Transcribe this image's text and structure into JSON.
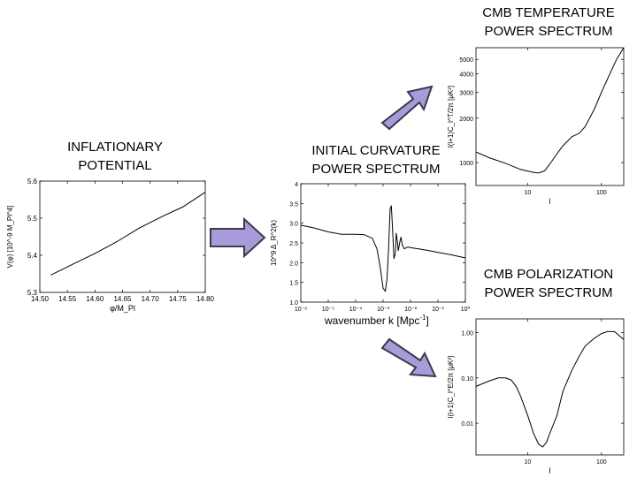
{
  "headings": {
    "inflation": [
      "INFLATIONARY",
      "POTENTIAL"
    ],
    "curvature": [
      "INITIAL CURVATURE",
      "POWER SPECTRUM"
    ],
    "temperature": [
      "CMB TEMPERATURE",
      "POWER SPECTRUM"
    ],
    "polarization": [
      "CMB POLARIZATION",
      "POWER SPECTRUM"
    ]
  },
  "arrow_color": "#a99ad9",
  "chart_data": [
    {
      "type": "line",
      "title": "INFLATIONARY POTENTIAL",
      "xlabel": "φ/M_Pl",
      "ylabel": "V(φ) [10^-9 M_Pl^4]",
      "xlim": [
        14.5,
        14.8
      ],
      "ylim": [
        5.3,
        5.6
      ],
      "x_ticks": [
        "14.50",
        "14.55",
        "14.60",
        "14.65",
        "14.70",
        "14.75",
        "14.80"
      ],
      "y_ticks": [
        "5.3",
        "5.4",
        "5.5",
        "5.6"
      ],
      "series": [
        {
          "x": [
            14.52,
            14.56,
            14.6,
            14.64,
            14.68,
            14.72,
            14.76,
            14.8
          ],
          "values": [
            5.347,
            5.376,
            5.405,
            5.437,
            5.473,
            5.503,
            5.531,
            5.57
          ]
        }
      ]
    },
    {
      "type": "line",
      "title": "INITIAL CURVATURE POWER SPECTRUM",
      "xlabel": "wavenumber k [Mpc",
      "xlabel_sup": "-1",
      "xlabel_end": "]",
      "ylabel": "10^9 Δ_R^2(k)",
      "xscale": "log",
      "xlim": [
        1e-06,
        1
      ],
      "ylim": [
        1.0,
        4.0
      ],
      "x_ticks": [
        "10⁻⁶",
        "10⁻⁵",
        "10⁻⁴",
        "10⁻³",
        "10⁻²",
        "10⁻¹",
        "10⁰"
      ],
      "y_ticks": [
        "1.0",
        "1.5",
        "2.0",
        "2.5",
        "3.0",
        "3.5",
        "4"
      ],
      "series": [
        {
          "x": [
            1e-06,
            3e-06,
            1e-05,
            3e-05,
            0.0001,
            0.0002,
            0.0004,
            0.0006,
            0.0008,
            0.001,
            0.0012,
            0.0014,
            0.0016,
            0.0018,
            0.002,
            0.0022,
            0.0025,
            0.0028,
            0.003,
            0.0033,
            0.0036,
            0.004,
            0.0045,
            0.005,
            0.006,
            0.008,
            0.01,
            0.02,
            0.05,
            0.1,
            0.3,
            1.0
          ],
          "values": [
            2.95,
            2.88,
            2.78,
            2.72,
            2.72,
            2.71,
            2.62,
            2.35,
            1.85,
            1.35,
            1.28,
            1.6,
            2.4,
            3.35,
            3.45,
            2.9,
            2.1,
            2.25,
            2.75,
            2.55,
            2.3,
            2.5,
            2.65,
            2.45,
            2.35,
            2.4,
            2.38,
            2.35,
            2.3,
            2.26,
            2.2,
            2.12
          ]
        }
      ]
    },
    {
      "type": "line",
      "title": "CMB TEMPERATURE POWER SPECTRUM",
      "xlabel": "l",
      "ylabel": "l(l+1)C_l^T/2π [μK²]",
      "xscale": "log",
      "yscale": "log",
      "xlim": [
        2,
        200
      ],
      "ylim": [
        700,
        6000
      ],
      "x_ticks": [
        "10",
        "100"
      ],
      "y_ticks": [
        "1000",
        "2000",
        "3000",
        "4000",
        "5000"
      ],
      "series": [
        {
          "x": [
            2,
            3,
            5,
            8,
            12,
            14,
            17,
            20,
            25,
            30,
            40,
            50,
            60,
            80,
            100,
            130,
            160,
            200
          ],
          "values": [
            1180,
            1080,
            990,
            900,
            860,
            850,
            880,
            980,
            1150,
            1300,
            1500,
            1580,
            1750,
            2300,
            3000,
            4000,
            5000,
            6000
          ]
        }
      ]
    },
    {
      "type": "line",
      "title": "CMB POLARIZATION POWER SPECTRUM",
      "xlabel": "l",
      "ylabel": "l(l+1)C_l^E/2π [μK²]",
      "xscale": "log",
      "yscale": "log",
      "xlim": [
        2,
        200
      ],
      "ylim": [
        0.002,
        2.0
      ],
      "x_ticks": [
        "10",
        "100"
      ],
      "y_ticks": [
        "0.01",
        "0.10",
        "1.00"
      ],
      "series": [
        {
          "x": [
            2,
            3,
            4,
            5,
            6,
            7,
            8,
            10,
            12,
            14,
            16,
            18,
            20,
            25,
            30,
            40,
            50,
            60,
            80,
            100,
            120,
            150,
            200
          ],
          "values": [
            0.065,
            0.085,
            0.1,
            0.1,
            0.09,
            0.065,
            0.04,
            0.015,
            0.006,
            0.0035,
            0.003,
            0.0038,
            0.006,
            0.015,
            0.05,
            0.15,
            0.3,
            0.5,
            0.75,
            0.95,
            1.05,
            1.05,
            0.7
          ]
        }
      ]
    }
  ]
}
